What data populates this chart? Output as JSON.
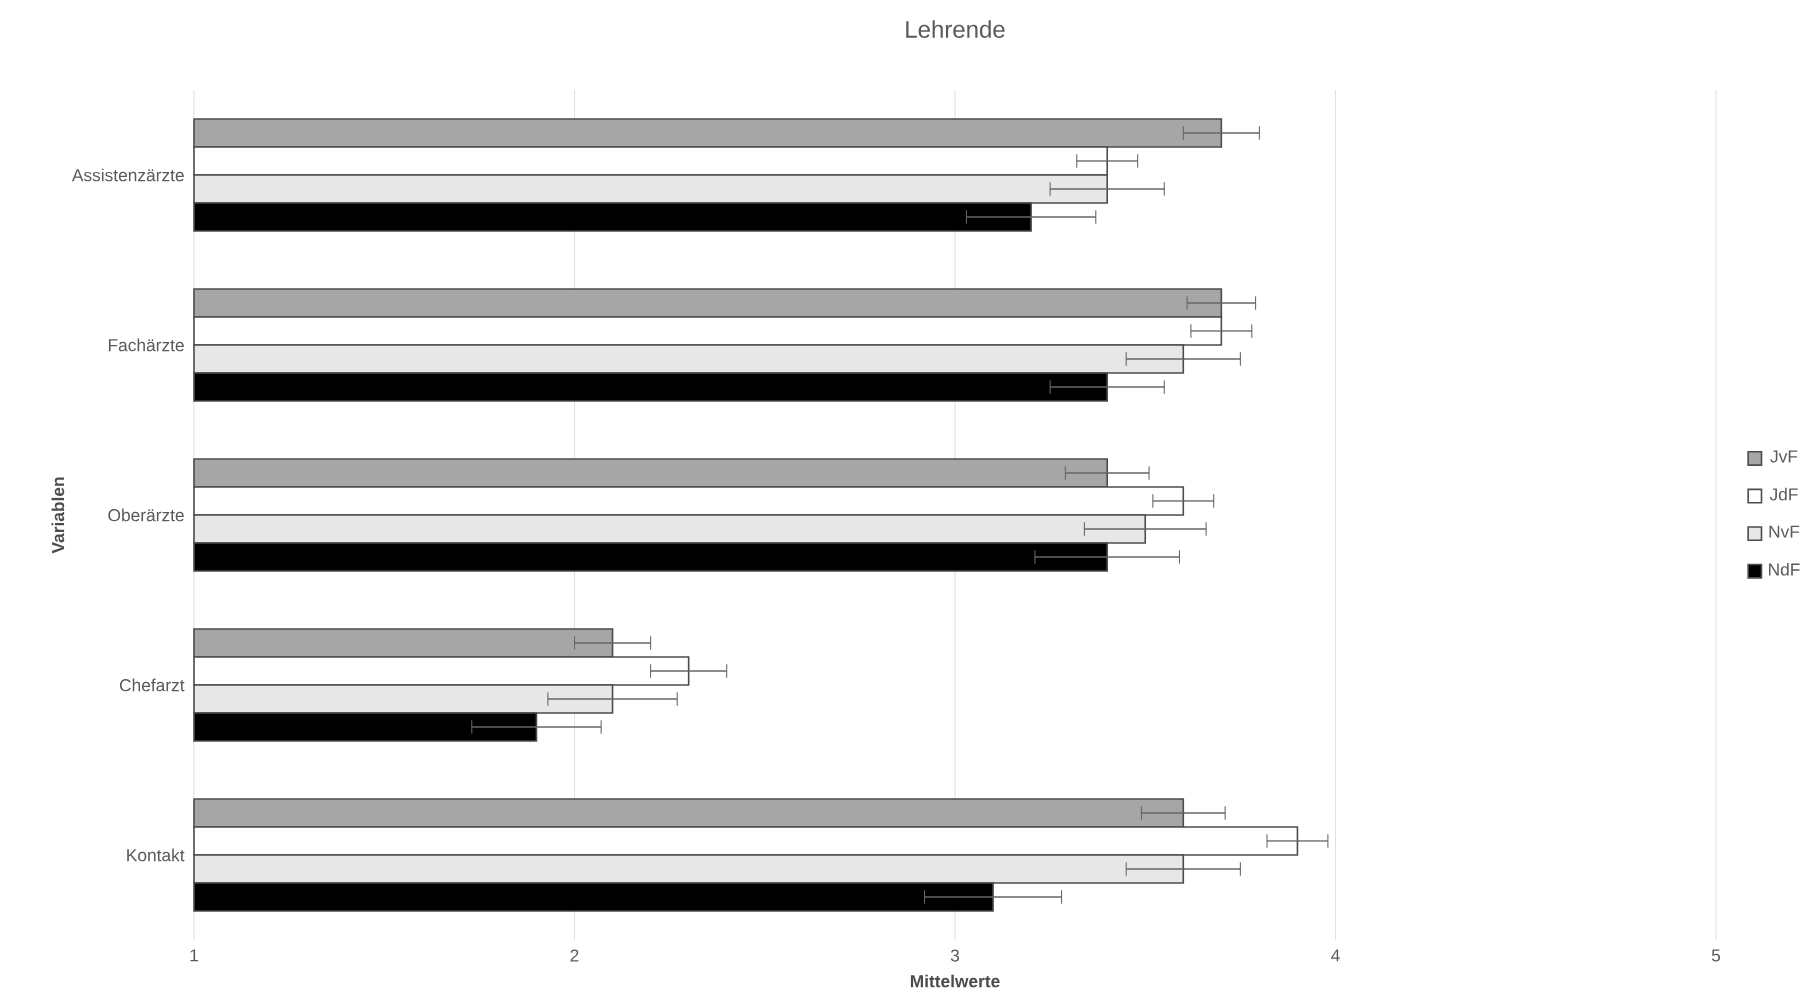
{
  "chart_data": {
    "type": "bar",
    "orientation": "horizontal",
    "title": "Lehrende",
    "xlabel": "Mittelwerte",
    "ylabel": "Variablen",
    "categories": [
      "Assistenzärzte",
      "Fachärzte",
      "Oberärzte",
      "Chefarzt",
      "Kontakt"
    ],
    "series": [
      {
        "name": "JvF",
        "color": "#a6a6a6",
        "values": [
          3.7,
          3.7,
          3.4,
          2.1,
          3.6
        ],
        "errors": [
          0.1,
          0.09,
          0.11,
          0.1,
          0.11
        ]
      },
      {
        "name": "JdF",
        "color": "#ffffff",
        "values": [
          3.4,
          3.7,
          3.6,
          2.3,
          3.9
        ],
        "errors": [
          0.08,
          0.08,
          0.08,
          0.1,
          0.08
        ]
      },
      {
        "name": "NvF",
        "color": "#e7e7e7",
        "values": [
          3.4,
          3.6,
          3.5,
          2.1,
          3.6
        ],
        "errors": [
          0.15,
          0.15,
          0.16,
          0.17,
          0.15
        ]
      },
      {
        "name": "NdF",
        "color": "#000000",
        "values": [
          3.2,
          3.4,
          3.4,
          1.9,
          3.1
        ],
        "errors": [
          0.17,
          0.15,
          0.19,
          0.17,
          0.18
        ]
      }
    ],
    "xlim": [
      1,
      5
    ],
    "xticks": [
      1,
      2,
      3,
      4,
      5
    ],
    "grid": "x",
    "legend": "right"
  }
}
